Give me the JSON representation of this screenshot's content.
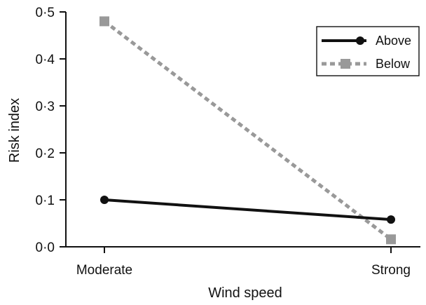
{
  "chart_data": {
    "type": "line",
    "title": "",
    "xlabel": "Wind speed",
    "ylabel": "Risk index",
    "categories": [
      "Moderate",
      "Strong"
    ],
    "ylim": [
      0,
      0.5
    ],
    "yticks": [
      0,
      0.1,
      0.2,
      0.3,
      0.4,
      0.5
    ],
    "ytick_labels": [
      "0·0",
      "0·1",
      "0·2",
      "0·3",
      "0·4",
      "0·5"
    ],
    "grid": false,
    "legend": "top-right",
    "series": [
      {
        "name": "Above",
        "values": [
          0.1,
          0.058
        ],
        "color": "#111111",
        "line_style": "solid",
        "marker": "circle"
      },
      {
        "name": "Below",
        "values": [
          0.48,
          0.016
        ],
        "color": "#999999",
        "line_style": "dashed",
        "marker": "square"
      }
    ]
  }
}
